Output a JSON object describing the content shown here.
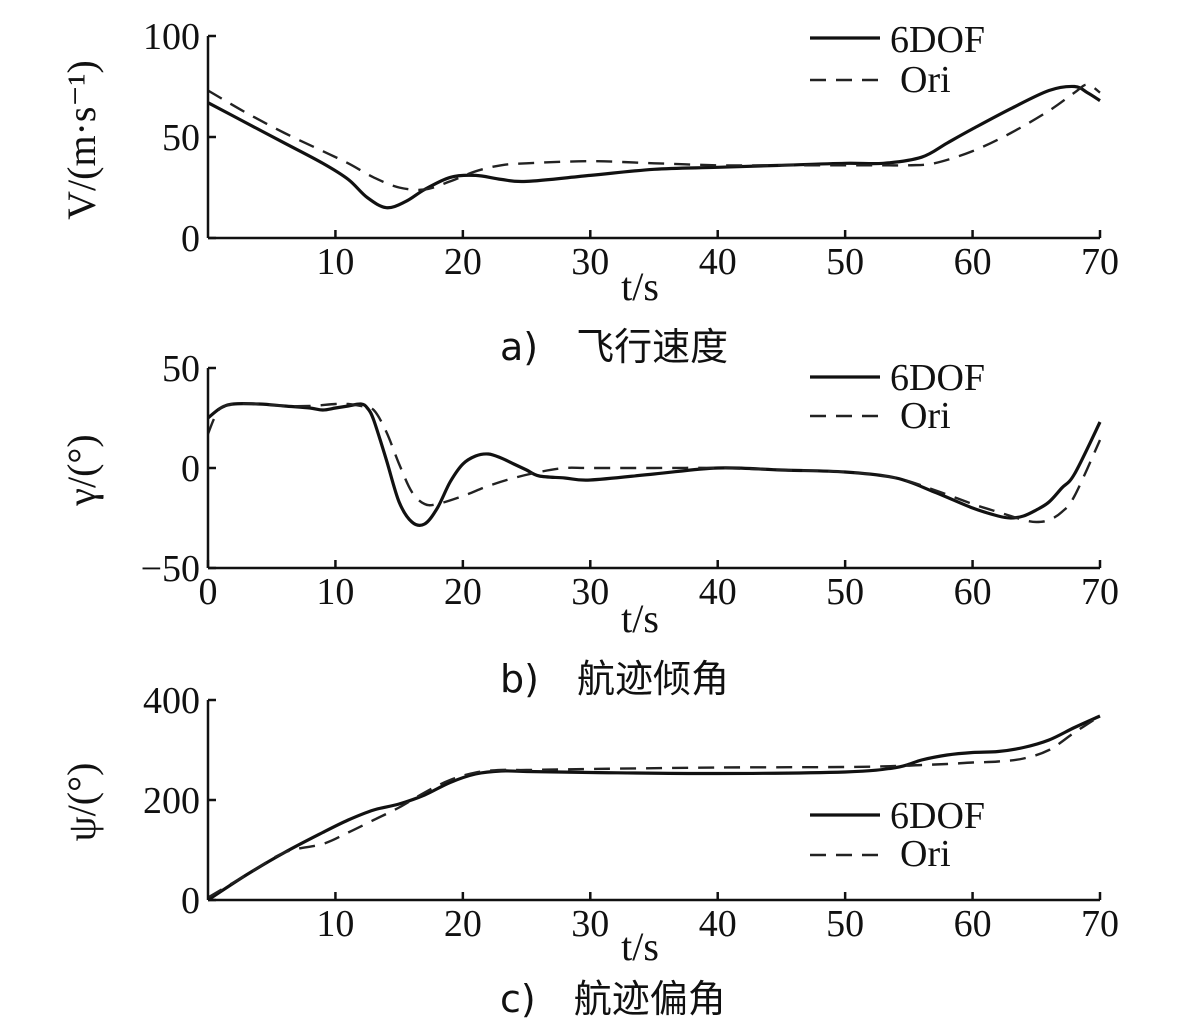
{
  "chart_data": [
    {
      "type": "line",
      "xlabel": "t/s",
      "ylabel": "V/(m·s⁻¹)",
      "xlim": [
        0,
        70
      ],
      "ylim": [
        0,
        100
      ],
      "xticks": [
        "10",
        "20",
        "30",
        "40",
        "50",
        "60",
        "70"
      ],
      "yticks": [
        "0",
        "50",
        "100"
      ],
      "caption": "a)　飞行速度",
      "legend": [
        "6DOF",
        "Ori"
      ],
      "legend_position": "top-right",
      "series": [
        {
          "name": "6DOF",
          "style": "solid",
          "x": [
            0,
            3,
            6,
            9,
            11,
            12.5,
            14,
            15.5,
            17,
            19,
            21,
            23,
            25,
            30,
            35,
            40,
            45,
            50,
            53,
            56,
            58,
            60,
            63,
            66,
            68,
            69,
            70
          ],
          "y": [
            67,
            57,
            47,
            37,
            29,
            20,
            15,
            18,
            24,
            30,
            31,
            29,
            28,
            31,
            34,
            35,
            36,
            37,
            37,
            40,
            47,
            54,
            64,
            73,
            75,
            72,
            68
          ]
        },
        {
          "name": "Ori",
          "style": "dashed",
          "x": [
            0,
            3,
            6,
            9,
            11,
            13,
            15,
            17,
            19,
            21,
            23,
            25,
            30,
            35,
            40,
            45,
            50,
            53,
            55,
            57,
            60,
            63,
            66,
            68,
            69,
            70
          ],
          "y": [
            73,
            62,
            52,
            43,
            37,
            30,
            25,
            24,
            28,
            33,
            36,
            37,
            38,
            37,
            36,
            36,
            36,
            36,
            36,
            37,
            43,
            52,
            63,
            72,
            76,
            72
          ]
        }
      ]
    },
    {
      "type": "line",
      "xlabel": "t/s",
      "ylabel": "γ/(°)",
      "xlim": [
        0,
        70
      ],
      "ylim": [
        -50,
        50
      ],
      "xticks": [
        "0",
        "10",
        "20",
        "30",
        "40",
        "50",
        "60",
        "70"
      ],
      "yticks": [
        "−50",
        "0",
        "50"
      ],
      "caption": "b)　航迹倾角",
      "legend": [
        "6DOF",
        "Ori"
      ],
      "legend_position": "top-right",
      "series": [
        {
          "name": "6DOF",
          "style": "solid",
          "x": [
            0,
            1,
            2,
            4,
            6,
            8,
            9,
            10,
            11,
            12,
            12.5,
            13,
            14,
            15,
            16,
            17,
            18,
            19,
            20,
            21,
            22,
            23,
            24,
            25,
            26,
            28,
            30,
            35,
            40,
            45,
            50,
            54,
            57,
            60,
            62,
            63,
            64,
            65,
            66,
            67,
            68,
            70
          ],
          "y": [
            25,
            30,
            32,
            32,
            31,
            30,
            29,
            30,
            31,
            32,
            30,
            24,
            4,
            -17,
            -27,
            -28,
            -20,
            -7,
            2,
            6,
            7,
            5,
            2,
            -1,
            -4,
            -5,
            -6,
            -3,
            0,
            -1,
            -2,
            -5,
            -12,
            -20,
            -24,
            -25,
            -24,
            -21,
            -17,
            -10,
            -3,
            23
          ]
        },
        {
          "name": "Ori",
          "style": "dashed",
          "x": [
            0,
            0.5,
            1,
            2,
            4,
            6,
            8,
            10,
            11,
            12,
            13,
            14,
            15,
            16,
            17,
            18,
            20,
            22,
            24,
            26,
            28,
            30,
            35,
            40,
            45,
            50,
            54,
            57,
            60,
            62,
            63,
            64,
            65,
            66,
            67,
            68,
            70
          ],
          "y": [
            17,
            25,
            30,
            32,
            32,
            31,
            31,
            32,
            32,
            31,
            29,
            18,
            2,
            -12,
            -18,
            -18,
            -14,
            -9,
            -5,
            -2,
            0,
            0,
            0,
            0,
            -1,
            -2,
            -5,
            -11,
            -18,
            -22,
            -24,
            -26,
            -27,
            -26,
            -22,
            -14,
            14
          ]
        }
      ]
    },
    {
      "type": "line",
      "xlabel": "t/s",
      "ylabel": "ψ/(°)",
      "xlim": [
        0,
        70
      ],
      "ylim": [
        0,
        400
      ],
      "xticks": [
        "10",
        "20",
        "30",
        "40",
        "50",
        "60",
        "70"
      ],
      "yticks": [
        "0",
        "200",
        "400"
      ],
      "caption": "c)　航迹偏角",
      "legend": [
        "6DOF",
        "Ori"
      ],
      "legend_position": "bottom-right",
      "series": [
        {
          "name": "6DOF",
          "style": "solid",
          "x": [
            0,
            3,
            6,
            9,
            11,
            13,
            15,
            17,
            19,
            21,
            23,
            25,
            30,
            40,
            50,
            54,
            56,
            58,
            60,
            62,
            64,
            66,
            68,
            70
          ],
          "y": [
            0,
            50,
            95,
            135,
            160,
            180,
            192,
            210,
            235,
            252,
            258,
            257,
            255,
            253,
            256,
            265,
            280,
            290,
            295,
            297,
            305,
            320,
            345,
            368
          ]
        },
        {
          "name": "Ori",
          "style": "dashed",
          "x": [
            0,
            3,
            6,
            9,
            11,
            13,
            15,
            17,
            19,
            21,
            23,
            25,
            30,
            40,
            50,
            54,
            56,
            58,
            60,
            62,
            64,
            66,
            68,
            70
          ],
          "y": [
            5,
            50,
            95,
            112,
            135,
            160,
            185,
            215,
            240,
            255,
            260,
            260,
            262,
            265,
            266,
            268,
            270,
            272,
            275,
            277,
            283,
            300,
            335,
            368
          ]
        }
      ]
    }
  ]
}
